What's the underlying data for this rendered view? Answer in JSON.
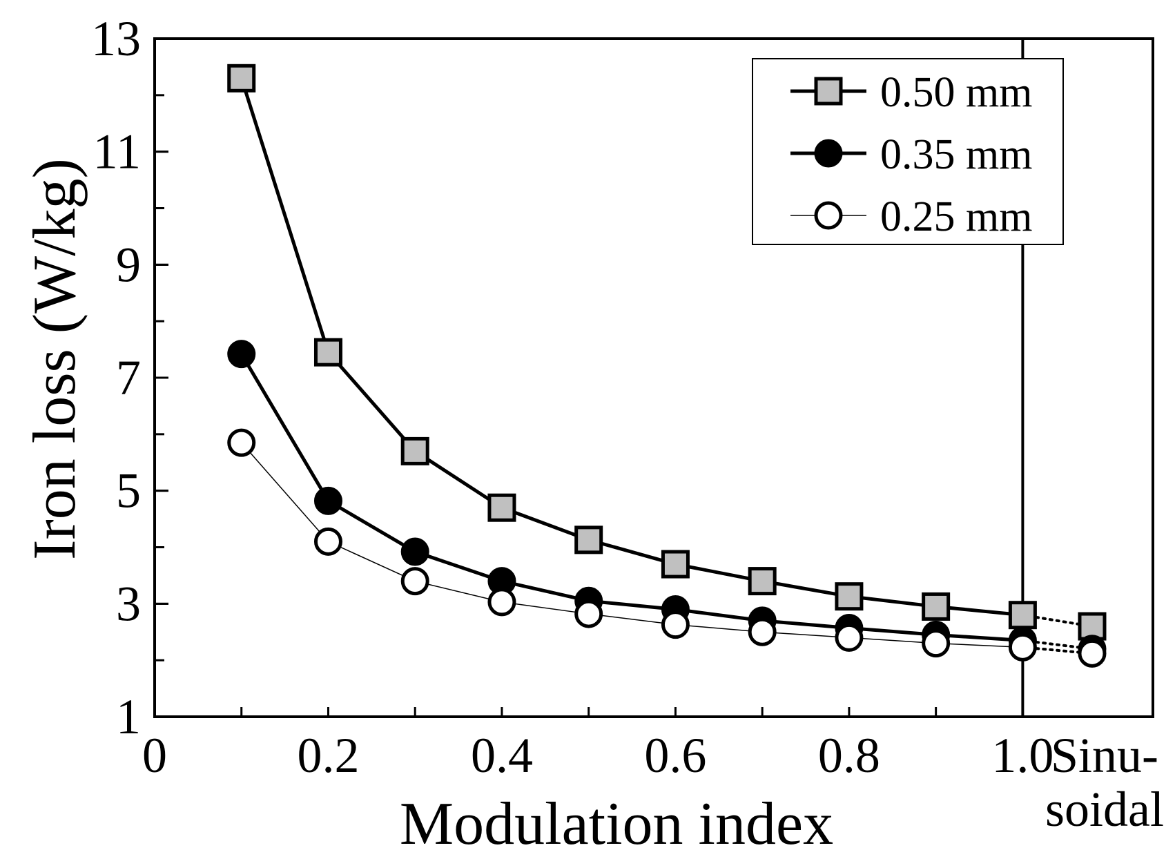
{
  "chart_data": {
    "type": "line",
    "title": "",
    "xlabel": "Modulation index",
    "ylabel": "Iron loss (W/kg)",
    "xlim": [
      0,
      1.15
    ],
    "ylim": [
      1,
      13
    ],
    "x": [
      0.1,
      0.2,
      0.3,
      0.4,
      0.5,
      0.6,
      0.7,
      0.8,
      0.9,
      1.0,
      1.08
    ],
    "x_tick_labels": [
      "0",
      "0.2",
      "0.4",
      "0.6",
      "0.8",
      "1.0"
    ],
    "x_tick_values": [
      0,
      0.2,
      0.4,
      0.6,
      0.8,
      1.0
    ],
    "y_tick_labels": [
      "1",
      "3",
      "5",
      "7",
      "9",
      "11",
      "13"
    ],
    "y_tick_values": [
      1,
      3,
      5,
      7,
      9,
      11,
      13
    ],
    "sinusoidal_label_line1": "Sinu-",
    "sinusoidal_label_line2": "soidal",
    "divider_x": 1.0,
    "legend_position": "top-right",
    "series": [
      {
        "name": "0.50 mm",
        "marker": "square",
        "marker_fill": "#c0c0c0",
        "values": [
          12.3,
          7.45,
          5.7,
          4.7,
          4.13,
          3.7,
          3.4,
          3.13,
          2.95,
          2.8,
          2.6
        ]
      },
      {
        "name": "0.35 mm",
        "marker": "circle",
        "marker_fill": "#000000",
        "values": [
          7.42,
          4.82,
          3.92,
          3.4,
          3.05,
          2.9,
          2.7,
          2.57,
          2.45,
          2.35,
          2.2
        ]
      },
      {
        "name": "0.25 mm",
        "marker": "circle",
        "marker_fill": "#ffffff",
        "values": [
          5.85,
          4.1,
          3.4,
          3.03,
          2.82,
          2.63,
          2.5,
          2.4,
          2.3,
          2.23,
          2.12
        ]
      }
    ]
  }
}
